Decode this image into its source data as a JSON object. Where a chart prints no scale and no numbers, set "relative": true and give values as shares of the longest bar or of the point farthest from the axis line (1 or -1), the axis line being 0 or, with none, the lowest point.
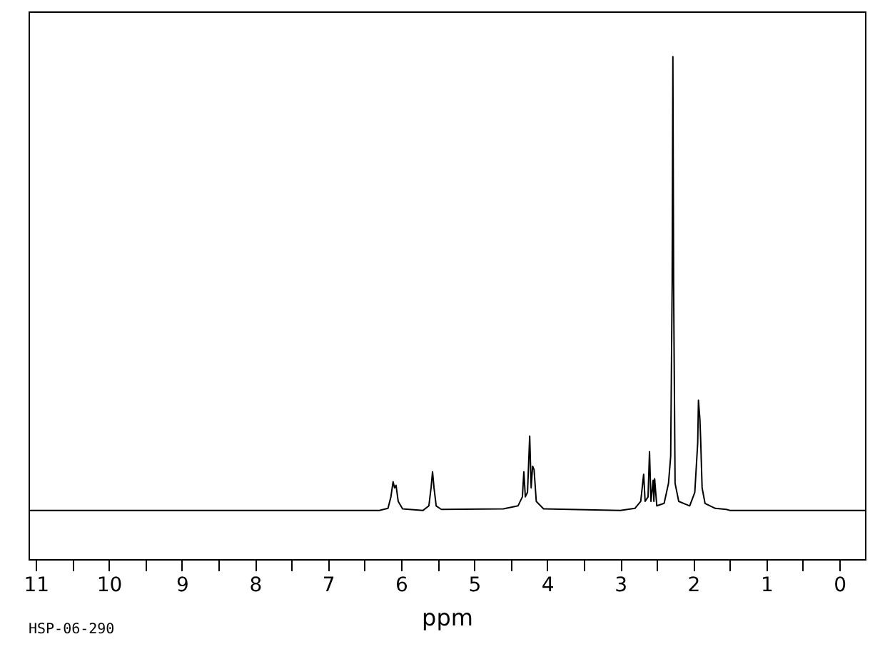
{
  "chart_data": {
    "type": "line",
    "xlabel": "ppm",
    "annotations": [
      "HSP-06-290"
    ],
    "relative": true,
    "tick_labels": "x",
    "xlim": [
      11.1,
      -0.35
    ],
    "xticks": [
      11,
      {
        "value": 10.5,
        "label": null
      },
      10,
      {
        "value": 9.5,
        "label": null
      },
      9,
      {
        "value": 8.5,
        "label": null
      },
      8,
      {
        "value": 7.5,
        "label": null
      },
      7,
      {
        "value": 6.5,
        "label": null
      },
      6,
      {
        "value": 5.5,
        "label": null
      },
      5,
      {
        "value": 4.5,
        "label": null
      },
      4,
      {
        "value": 3.5,
        "label": null
      },
      3,
      {
        "value": 2.5,
        "label": null
      },
      2,
      {
        "value": 1.5,
        "label": null
      },
      1,
      {
        "value": 0.5,
        "label": null
      },
      0
    ],
    "x": [
      11.1,
      6.3,
      6.18,
      6.14,
      6.11,
      6.09,
      6.07,
      6.04,
      5.98,
      5.7,
      5.62,
      5.59,
      5.57,
      5.55,
      5.52,
      5.45,
      4.6,
      4.4,
      4.34,
      4.32,
      4.3,
      4.27,
      4.24,
      4.22,
      4.2,
      4.18,
      4.15,
      4.05,
      3.0,
      2.8,
      2.72,
      2.68,
      2.66,
      2.62,
      2.6,
      2.58,
      2.55,
      2.54,
      2.53,
      2.5,
      2.4,
      2.34,
      2.31,
      2.29,
      2.28,
      2.27,
      2.25,
      2.2,
      2.05,
      1.98,
      1.94,
      1.93,
      1.91,
      1.9,
      1.88,
      1.84,
      1.7,
      1.55,
      1.5,
      -0.35
    ],
    "series": [
      {
        "color": "#000000",
        "values": [
          0.097,
          0.097,
          0.101,
          0.124,
          0.154,
          0.142,
          0.147,
          0.115,
          0.1,
          0.097,
          0.106,
          0.142,
          0.174,
          0.142,
          0.106,
          0.099,
          0.1,
          0.106,
          0.124,
          0.174,
          0.124,
          0.133,
          0.245,
          0.142,
          0.185,
          0.178,
          0.115,
          0.1,
          0.097,
          0.101,
          0.115,
          0.169,
          0.115,
          0.124,
          0.214,
          0.115,
          0.157,
          0.115,
          0.16,
          0.106,
          0.111,
          0.151,
          0.205,
          0.549,
          1,
          0.549,
          0.151,
          0.115,
          0.106,
          0.133,
          0.232,
          0.316,
          0.278,
          0.239,
          0.142,
          0.111,
          0.101,
          0.099,
          0.097,
          0.097
        ]
      }
    ]
  }
}
